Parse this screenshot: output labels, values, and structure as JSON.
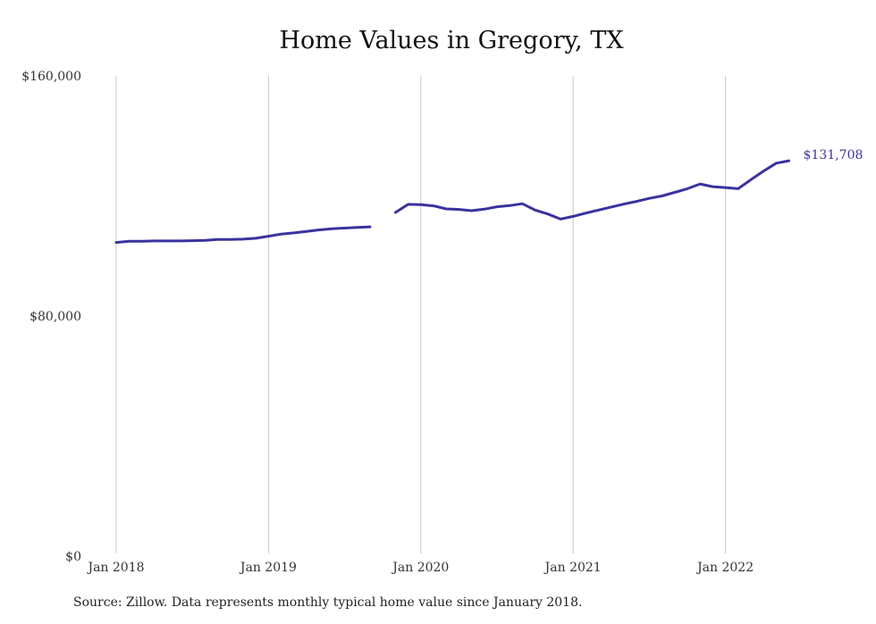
{
  "chart_data": {
    "type": "line",
    "title": "Home Values in Gregory, TX",
    "xlabel": "",
    "ylabel": "",
    "ylim": [
      0,
      160000
    ],
    "y_ticks": [
      {
        "value": 0,
        "label": "$0"
      },
      {
        "value": 80000,
        "label": "$80,000"
      },
      {
        "value": 160000,
        "label": "$160,000"
      }
    ],
    "x_ticks": [
      {
        "value": "2018-01",
        "label": "Jan 2018"
      },
      {
        "value": "2019-01",
        "label": "Jan 2019"
      },
      {
        "value": "2020-01",
        "label": "Jan 2020"
      },
      {
        "value": "2021-01",
        "label": "Jan 2021"
      },
      {
        "value": "2022-01",
        "label": "Jan 2022"
      }
    ],
    "grid": "vertical lines at each January",
    "series": [
      {
        "color": "#3a32a0",
        "end_label": "$131,708",
        "segments": [
          [
            {
              "x": "2018-01",
              "y": 104500
            },
            {
              "x": "2018-02",
              "y": 104900
            },
            {
              "x": "2018-03",
              "y": 104900
            },
            {
              "x": "2018-04",
              "y": 105000
            },
            {
              "x": "2018-05",
              "y": 105000
            },
            {
              "x": "2018-06",
              "y": 105000
            },
            {
              "x": "2018-07",
              "y": 105100
            },
            {
              "x": "2018-08",
              "y": 105200
            },
            {
              "x": "2018-09",
              "y": 105500
            },
            {
              "x": "2018-10",
              "y": 105500
            },
            {
              "x": "2018-11",
              "y": 105600
            },
            {
              "x": "2018-12",
              "y": 105900
            },
            {
              "x": "2019-01",
              "y": 106600
            },
            {
              "x": "2019-02",
              "y": 107300
            },
            {
              "x": "2019-03",
              "y": 107700
            },
            {
              "x": "2019-04",
              "y": 108200
            },
            {
              "x": "2019-05",
              "y": 108700
            },
            {
              "x": "2019-06",
              "y": 109100
            },
            {
              "x": "2019-07",
              "y": 109300
            },
            {
              "x": "2019-08",
              "y": 109500
            },
            {
              "x": "2019-09",
              "y": 109700
            }
          ],
          [
            {
              "x": "2019-11",
              "y": 114500
            },
            {
              "x": "2019-12",
              "y": 117200
            },
            {
              "x": "2020-01",
              "y": 117100
            },
            {
              "x": "2020-02",
              "y": 116700
            },
            {
              "x": "2020-03",
              "y": 115700
            },
            {
              "x": "2020-04",
              "y": 115500
            },
            {
              "x": "2020-05",
              "y": 115100
            },
            {
              "x": "2020-06",
              "y": 115600
            },
            {
              "x": "2020-07",
              "y": 116400
            },
            {
              "x": "2020-08",
              "y": 116800
            },
            {
              "x": "2020-09",
              "y": 117400
            },
            {
              "x": "2020-10",
              "y": 115300
            },
            {
              "x": "2020-11",
              "y": 114000
            },
            {
              "x": "2020-12",
              "y": 112300
            },
            {
              "x": "2021-01",
              "y": 113200
            },
            {
              "x": "2021-02",
              "y": 114300
            },
            {
              "x": "2021-03",
              "y": 115300
            },
            {
              "x": "2021-04",
              "y": 116300
            },
            {
              "x": "2021-05",
              "y": 117300
            },
            {
              "x": "2021-06",
              "y": 118200
            },
            {
              "x": "2021-07",
              "y": 119200
            },
            {
              "x": "2021-08",
              "y": 120000
            },
            {
              "x": "2021-09",
              "y": 121200
            },
            {
              "x": "2021-10",
              "y": 122400
            },
            {
              "x": "2021-11",
              "y": 124000
            },
            {
              "x": "2021-12",
              "y": 123100
            },
            {
              "x": "2022-01",
              "y": 122800
            },
            {
              "x": "2022-02",
              "y": 122400
            },
            {
              "x": "2022-03",
              "y": 125400
            },
            {
              "x": "2022-04",
              "y": 128300
            },
            {
              "x": "2022-05",
              "y": 130900
            },
            {
              "x": "2022-06",
              "y": 131708
            }
          ]
        ]
      }
    ],
    "source": "Source: Zillow. Data represents monthly typical home value since January 2018."
  }
}
